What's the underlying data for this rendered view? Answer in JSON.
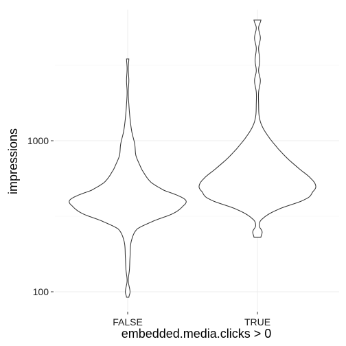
{
  "chart_data": {
    "type": "violin",
    "title": "",
    "xlabel": "embedded.media.clicks > 0",
    "ylabel": "impressions",
    "y_scale": "log10",
    "ylim": [
      85,
      5000
    ],
    "y_ticks": [
      100,
      1000
    ],
    "y_tick_labels": [
      "100",
      "1000"
    ],
    "categories": [
      "FALSE",
      "TRUE"
    ],
    "grid": true,
    "legend": "none",
    "series": [
      {
        "category": "FALSE",
        "min": 92,
        "max": 3480,
        "profile": [
          [
            92,
            0.02
          ],
          [
            100,
            0.04
          ],
          [
            118,
            0.01
          ],
          [
            140,
            0.03
          ],
          [
            170,
            0.04
          ],
          [
            215,
            0.06
          ],
          [
            260,
            0.16
          ],
          [
            295,
            0.45
          ],
          [
            330,
            0.78
          ],
          [
            370,
            0.95
          ],
          [
            400,
            1.0
          ],
          [
            430,
            0.88
          ],
          [
            470,
            0.62
          ],
          [
            530,
            0.4
          ],
          [
            620,
            0.27
          ],
          [
            700,
            0.2
          ],
          [
            800,
            0.14
          ],
          [
            950,
            0.12
          ],
          [
            1150,
            0.07
          ],
          [
            1400,
            0.04
          ],
          [
            1750,
            0.02
          ],
          [
            2100,
            0.01
          ],
          [
            2500,
            0.02
          ],
          [
            3000,
            0.01
          ],
          [
            3480,
            0.02
          ]
        ]
      },
      {
        "category": "TRUE",
        "min": 230,
        "max": 6300,
        "profile": [
          [
            230,
            0.06
          ],
          [
            250,
            0.08
          ],
          [
            275,
            0.03
          ],
          [
            305,
            0.09
          ],
          [
            350,
            0.35
          ],
          [
            410,
            0.82
          ],
          [
            460,
            0.95
          ],
          [
            500,
            1.0
          ],
          [
            560,
            0.92
          ],
          [
            650,
            0.72
          ],
          [
            760,
            0.52
          ],
          [
            880,
            0.36
          ],
          [
            1050,
            0.2
          ],
          [
            1250,
            0.08
          ],
          [
            1450,
            0.03
          ],
          [
            1750,
            0.02
          ],
          [
            2100,
            0.02
          ],
          [
            2500,
            0.05
          ],
          [
            2900,
            0.02
          ],
          [
            3400,
            0.04
          ],
          [
            4100,
            0.02
          ],
          [
            4800,
            0.05
          ],
          [
            5600,
            0.02
          ],
          [
            6300,
            0.06
          ]
        ]
      }
    ]
  }
}
